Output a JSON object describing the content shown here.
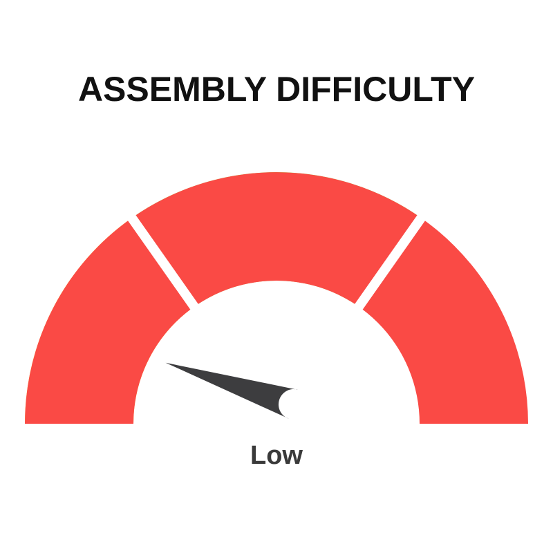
{
  "title": "ASSEMBLY DIFFICULTY",
  "gauge": {
    "value_label": "Low",
    "needle_fraction": 0.1,
    "segments": [
      {
        "color": "#FDC71E",
        "from": 0,
        "to": 0.305
      },
      {
        "color": "#A3CD3E",
        "from": 0.305,
        "to": 0.695
      },
      {
        "color": "#FA4A45"
      }
    ],
    "needle_color": "#3D3D3F"
  }
}
